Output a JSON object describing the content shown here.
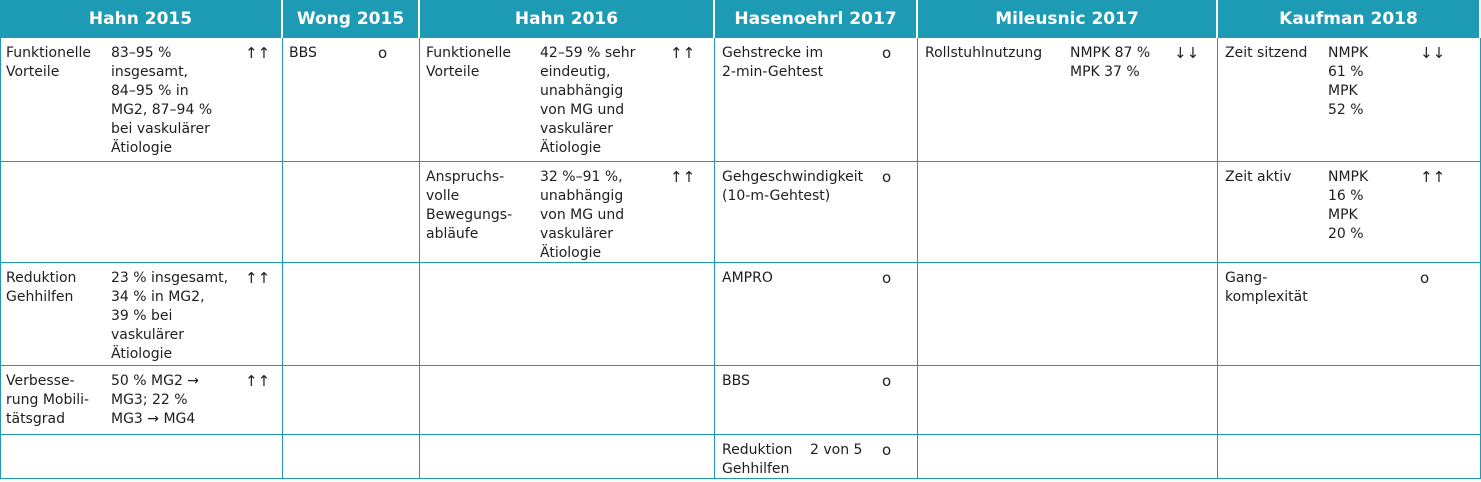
{
  "table": {
    "headers": [
      "Hahn 2015",
      "Wong 2015",
      "Hahn 2016",
      "Hasenoehrl 2017",
      "Mileusnic 2017",
      "Kaufman 2018"
    ],
    "rows": [
      [
        {
          "label": "Funktionelle\nVorteile",
          "text": "83–95 %\ninsgesamt,\n84–95 % in\nMG2, 87–94 %\nbei vaskulärer\nÄtiologie",
          "symbol": "↑↑"
        },
        {
          "label": "BBS",
          "symbol": "o"
        },
        {
          "label": "Funktionelle\nVorteile",
          "text": "42–59 % sehr\neindeutig,\nunabhängig\nvon MG und\nvaskulärer\nÄtiologie",
          "symbol": "↑↑"
        },
        {
          "label": "Gehstrecke im\n2-min-Gehtest",
          "symbol": "o"
        },
        {
          "label": "Rollstuhlnutzung",
          "text": "NMPK 87 %\nMPK 37 %",
          "symbol": "↓↓"
        },
        {
          "label": "Zeit sitzend",
          "text": "NMPK\n61 %\nMPK\n52 %",
          "symbol": "↓↓"
        }
      ],
      [
        null,
        null,
        {
          "label": "Anspruchs-\nvolle\nBewegungs-\nabläufe",
          "text": "32 %–91 %,\nunabhängig\nvon MG und\nvaskulärer\nÄtiologie",
          "symbol": "↑↑"
        },
        {
          "label": "Gehgeschwindigkeit\n(10-m-Gehtest)",
          "symbol": "o"
        },
        null,
        {
          "label": "Zeit aktiv",
          "text": "NMPK\n16 %\nMPK\n20 %",
          "symbol": "↑↑"
        }
      ],
      [
        {
          "label": "Reduktion\nGehhilfen",
          "text": "23 % insgesamt,\n34 % in MG2,\n39 % bei\nvaskulärer\nÄtiologie",
          "symbol": "↑↑"
        },
        null,
        null,
        {
          "label": "AMPRO",
          "symbol": "o"
        },
        null,
        {
          "label": "Gang-\nkomplexität",
          "symbol": "o"
        }
      ],
      [
        {
          "label": "Verbesse-\nrung Mobili-\ntätsgrad",
          "text": "50 % MG2 →\nMG3; 22 %\nMG3 → MG4",
          "symbol": "↑↑"
        },
        null,
        null,
        {
          "label": "BBS",
          "symbol": "o"
        },
        null,
        null
      ],
      [
        null,
        null,
        null,
        {
          "label": "Reduktion\nGehhilfen",
          "text": "2 von 5",
          "symbol": "o"
        },
        null,
        null
      ]
    ]
  }
}
